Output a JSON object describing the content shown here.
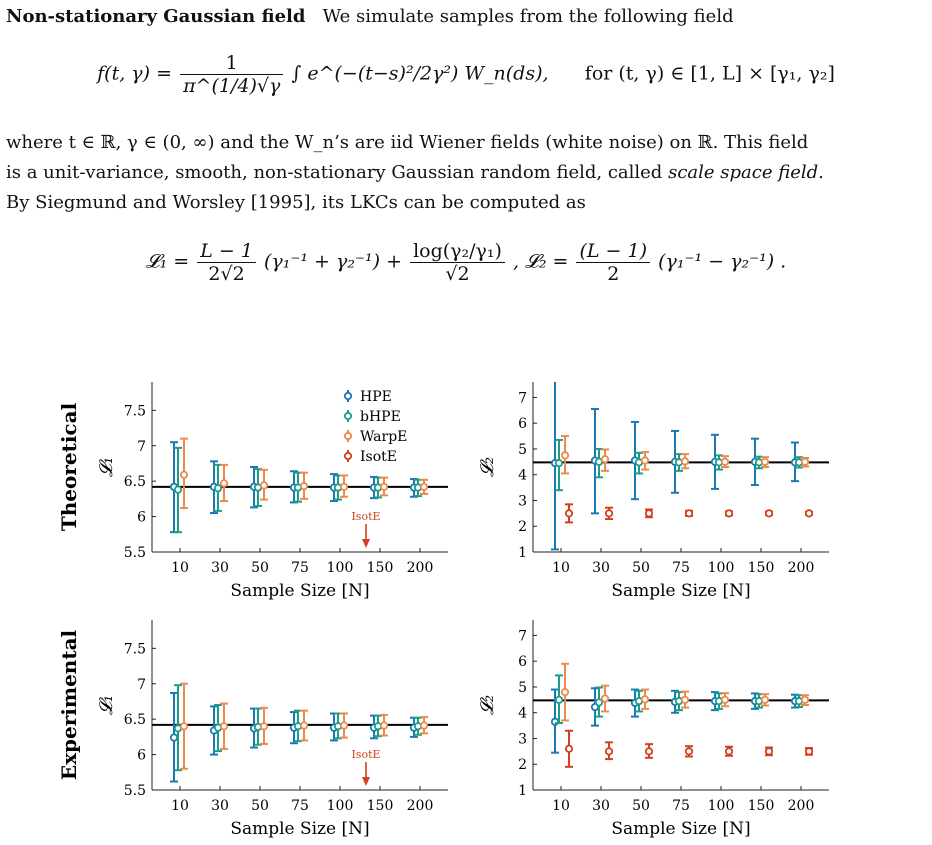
{
  "text": {
    "heading": "Non-stationary Gaussian field",
    "intro": "We simulate samples from the following field",
    "eq1_lhs": "f(t, γ) =",
    "eq1_num": "1",
    "eq1_den": "π^(1/4)√γ",
    "eq1_integral": "∫ e^(−(t−s)²/2γ²) W_n(ds),",
    "eq1_for": "for (t, γ) ∈ [1, L] × [γ₁, γ₂]",
    "p2_line1": "where t ∈ ℝ, γ ∈ (0, ∞) and the W_n’s are iid Wiener fields (white noise) on ℝ. This field",
    "p2_line2a": "is a unit-variance, smooth, non-stationary Gaussian random field, called",
    "p2_line2_em": "scale space field.",
    "p2_line3": "By Siegmund and Worsley [1995], its LKCs can be computed as",
    "eq2_l1": "𝓛₁ =",
    "eq2_f1_num": "L − 1",
    "eq2_f1_den": "2√2",
    "eq2_t1": "(γ₁⁻¹ + γ₂⁻¹) +",
    "eq2_f2_num": "log(γ₂/γ₁)",
    "eq2_f2_den": "√2",
    "eq2_l2": ",   𝓛₂ =",
    "eq2_f3_num": "(L − 1)",
    "eq2_f3_den": "2",
    "eq2_t2": "(γ₁⁻¹ − γ₂⁻¹) ."
  },
  "colors": {
    "HPE": "#1a78b5",
    "bHPE": "#1a9e8a",
    "WarpE": "#ec8a4b",
    "IsotE": "#d2401f",
    "ref": "#000000"
  },
  "chart_data": [
    {
      "type": "scatter",
      "row_label": "Theoretical",
      "ylabel": "𝓛₁",
      "xlabel": "Sample Size [N]",
      "categories": [
        "10",
        "30",
        "50",
        "75",
        "100",
        "150",
        "200"
      ],
      "ylim": [
        5.5,
        7.9
      ],
      "yticks": [
        "5.5",
        "6",
        "6.5",
        "7",
        "7.5"
      ],
      "reference": 6.42,
      "annotation": "IsotE",
      "legend": true,
      "series": [
        {
          "name": "HPE",
          "mean": [
            6.42,
            6.42,
            6.42,
            6.41,
            6.41,
            6.41,
            6.41
          ],
          "lo": [
            5.78,
            6.05,
            6.13,
            6.2,
            6.22,
            6.26,
            6.28
          ],
          "hi": [
            7.05,
            6.78,
            6.7,
            6.64,
            6.6,
            6.56,
            6.53
          ]
        },
        {
          "name": "bHPE",
          "mean": [
            6.38,
            6.4,
            6.41,
            6.41,
            6.41,
            6.41,
            6.41
          ],
          "lo": [
            5.78,
            6.08,
            6.15,
            6.21,
            6.24,
            6.27,
            6.29
          ],
          "hi": [
            6.97,
            6.73,
            6.67,
            6.62,
            6.58,
            6.55,
            6.52
          ]
        },
        {
          "name": "WarpE",
          "mean": [
            6.59,
            6.47,
            6.44,
            6.43,
            6.42,
            6.42,
            6.42
          ],
          "lo": [
            6.12,
            6.22,
            6.24,
            6.25,
            6.28,
            6.3,
            6.32
          ],
          "hi": [
            7.1,
            6.73,
            6.66,
            6.62,
            6.58,
            6.55,
            6.52
          ]
        }
      ]
    },
    {
      "type": "scatter",
      "row_label": "Theoretical",
      "ylabel": "𝓛₂",
      "xlabel": "Sample Size [N]",
      "categories": [
        "10",
        "30",
        "50",
        "75",
        "100",
        "150",
        "200"
      ],
      "ylim": [
        1,
        7.6
      ],
      "yticks": [
        "1",
        "2",
        "3",
        "4",
        "5",
        "6",
        "7"
      ],
      "reference": 4.48,
      "series": [
        {
          "name": "HPE",
          "mean": [
            4.45,
            4.55,
            4.55,
            4.5,
            4.5,
            4.5,
            4.48
          ],
          "lo": [
            1.1,
            2.5,
            3.05,
            3.3,
            3.45,
            3.6,
            3.75
          ],
          "hi": [
            7.7,
            6.55,
            6.05,
            5.7,
            5.55,
            5.4,
            5.25
          ]
        },
        {
          "name": "bHPE",
          "mean": [
            4.45,
            4.5,
            4.48,
            4.48,
            4.48,
            4.48,
            4.48
          ],
          "lo": [
            3.4,
            3.9,
            4.05,
            4.15,
            4.2,
            4.25,
            4.28
          ],
          "hi": [
            5.35,
            5.0,
            4.85,
            4.8,
            4.75,
            4.7,
            4.68
          ]
        },
        {
          "name": "WarpE",
          "mean": [
            4.75,
            4.6,
            4.55,
            4.52,
            4.5,
            4.5,
            4.5
          ],
          "lo": [
            4.05,
            4.15,
            4.2,
            4.25,
            4.3,
            4.3,
            4.32
          ],
          "hi": [
            5.5,
            4.98,
            4.88,
            4.8,
            4.72,
            4.68,
            4.65
          ]
        },
        {
          "name": "IsotE",
          "mean": [
            2.5,
            2.5,
            2.5,
            2.5,
            2.5,
            2.5,
            2.5
          ],
          "lo": [
            2.15,
            2.28,
            2.35,
            2.4,
            2.42,
            2.43,
            2.44
          ],
          "hi": [
            2.85,
            2.72,
            2.65,
            2.6,
            2.58,
            2.57,
            2.56
          ]
        }
      ]
    },
    {
      "type": "scatter",
      "row_label": "Experimental",
      "ylabel": "𝓛₁",
      "xlabel": "Sample Size [N]",
      "categories": [
        "10",
        "30",
        "50",
        "75",
        "100",
        "150",
        "200"
      ],
      "ylim": [
        5.5,
        7.9
      ],
      "yticks": [
        "5.5",
        "6",
        "6.5",
        "7",
        "7.5"
      ],
      "reference": 6.42,
      "annotation": "IsotE",
      "series": [
        {
          "name": "HPE",
          "mean": [
            6.24,
            6.34,
            6.37,
            6.38,
            6.38,
            6.38,
            6.38
          ],
          "lo": [
            5.62,
            6.0,
            6.1,
            6.16,
            6.2,
            6.23,
            6.25
          ],
          "hi": [
            6.87,
            6.68,
            6.65,
            6.6,
            6.58,
            6.55,
            6.52
          ]
        },
        {
          "name": "bHPE",
          "mean": [
            6.37,
            6.38,
            6.39,
            6.4,
            6.4,
            6.4,
            6.4
          ],
          "lo": [
            5.78,
            6.05,
            6.14,
            6.19,
            6.23,
            6.26,
            6.28
          ],
          "hi": [
            6.98,
            6.7,
            6.65,
            6.62,
            6.58,
            6.55,
            6.52
          ]
        },
        {
          "name": "WarpE",
          "mean": [
            6.4,
            6.4,
            6.4,
            6.41,
            6.41,
            6.41,
            6.41
          ],
          "lo": [
            5.8,
            6.08,
            6.15,
            6.2,
            6.24,
            6.27,
            6.3
          ],
          "hi": [
            7.0,
            6.72,
            6.66,
            6.62,
            6.58,
            6.56,
            6.53
          ]
        }
      ]
    },
    {
      "type": "scatter",
      "row_label": "Experimental",
      "ylabel": "𝓛₂",
      "xlabel": "Sample Size [N]",
      "categories": [
        "10",
        "30",
        "50",
        "75",
        "100",
        "150",
        "200"
      ],
      "ylim": [
        1,
        7.6
      ],
      "yticks": [
        "1",
        "2",
        "3",
        "4",
        "5",
        "6",
        "7"
      ],
      "reference": 4.48,
      "series": [
        {
          "name": "HPE",
          "mean": [
            3.65,
            4.22,
            4.38,
            4.42,
            4.45,
            4.45,
            4.45
          ],
          "lo": [
            2.45,
            3.5,
            3.85,
            4.0,
            4.1,
            4.15,
            4.2
          ],
          "hi": [
            4.9,
            4.95,
            4.9,
            4.85,
            4.8,
            4.75,
            4.7
          ]
        },
        {
          "name": "bHPE",
          "mean": [
            4.5,
            4.4,
            4.45,
            4.45,
            4.45,
            4.45,
            4.45
          ],
          "lo": [
            3.6,
            3.85,
            4.05,
            4.1,
            4.15,
            4.2,
            4.22
          ],
          "hi": [
            5.45,
            4.98,
            4.85,
            4.8,
            4.75,
            4.72,
            4.68
          ]
        },
        {
          "name": "WarpE",
          "mean": [
            4.8,
            4.55,
            4.52,
            4.5,
            4.5,
            4.5,
            4.5
          ],
          "lo": [
            3.7,
            4.05,
            4.15,
            4.2,
            4.25,
            4.28,
            4.3
          ],
          "hi": [
            5.9,
            5.05,
            4.9,
            4.82,
            4.76,
            4.72,
            4.68
          ]
        },
        {
          "name": "IsotE",
          "mean": [
            2.6,
            2.5,
            2.5,
            2.5,
            2.5,
            2.5,
            2.5
          ],
          "lo": [
            1.9,
            2.2,
            2.25,
            2.3,
            2.33,
            2.35,
            2.37
          ],
          "hi": [
            3.3,
            2.85,
            2.78,
            2.7,
            2.68,
            2.65,
            2.63
          ]
        }
      ]
    }
  ]
}
